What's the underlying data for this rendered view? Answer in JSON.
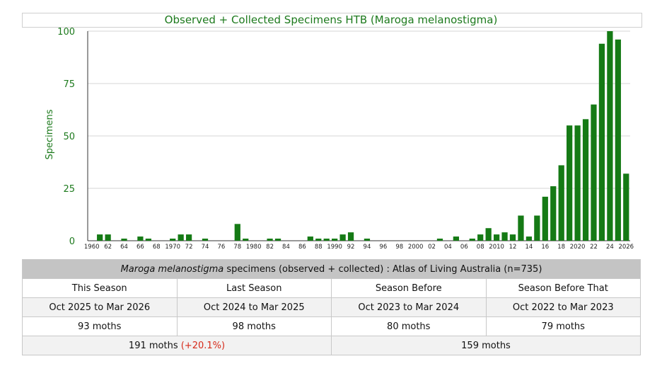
{
  "chart_data": {
    "type": "bar",
    "title": "Observed + Collected Specimens HTB (Maroga melanostigma)",
    "ylabel": "Specimens",
    "ylim": [
      0,
      100
    ],
    "yticks": [
      0,
      25,
      50,
      75,
      100
    ],
    "grid": true,
    "bar_color": "#157a15",
    "categories": [
      1960,
      1961,
      1962,
      1963,
      1964,
      1965,
      1966,
      1967,
      1968,
      1969,
      1970,
      1971,
      1972,
      1973,
      1974,
      1975,
      1976,
      1977,
      1978,
      1979,
      1980,
      1981,
      1982,
      1983,
      1984,
      1985,
      1986,
      1987,
      1988,
      1989,
      1990,
      1991,
      1992,
      1993,
      1994,
      1995,
      1996,
      1997,
      1998,
      1999,
      2000,
      2001,
      2002,
      2003,
      2004,
      2005,
      2006,
      2007,
      2008,
      2009,
      2010,
      2011,
      2012,
      2013,
      2014,
      2015,
      2016,
      2017,
      2018,
      2019,
      2020,
      2021,
      2022,
      2023,
      2024,
      2025,
      2026
    ],
    "values": [
      0,
      3,
      3,
      0,
      1,
      0,
      2,
      1,
      0,
      0,
      1,
      3,
      3,
      0,
      1,
      0,
      0,
      0,
      8,
      1,
      0,
      0,
      1,
      1,
      0,
      0,
      0,
      2,
      1,
      1,
      1,
      3,
      4,
      0,
      1,
      0,
      0,
      0,
      0,
      0,
      0,
      0,
      0,
      1,
      0,
      2,
      0,
      1,
      3,
      6,
      3,
      4,
      3,
      12,
      2,
      12,
      21,
      26,
      36,
      55,
      55,
      58,
      65,
      94,
      100,
      96,
      32
    ],
    "xtick_labels": [
      "1960",
      "62",
      "64",
      "66",
      "68",
      "1970",
      "72",
      "74",
      "76",
      "78",
      "1980",
      "82",
      "84",
      "86",
      "88",
      "1990",
      "92",
      "94",
      "96",
      "98",
      "2000",
      "02",
      "04",
      "06",
      "08",
      "2010",
      "12",
      "14",
      "16",
      "18",
      "2020",
      "22",
      "24",
      "2026"
    ]
  },
  "summary": {
    "header_species": "Maroga melanostigma",
    "header_rest": " specimens (observed + collected) : Atlas of Living Australia (n=735)",
    "columns": [
      {
        "label": "This Season",
        "range": "Oct 2025 to Mar 2026",
        "count": "93 moths"
      },
      {
        "label": "Last Season",
        "range": "Oct 2024 to Mar 2025",
        "count": "98 moths"
      },
      {
        "label": "Season Before",
        "range": "Oct 2023 to Mar 2024",
        "count": "80 moths"
      },
      {
        "label": "Season Before That",
        "range": "Oct 2022 to Mar 2023",
        "count": "79 moths"
      }
    ],
    "totals": {
      "recent": "191 moths",
      "recent_change": "(+20.1%)",
      "prior": "159 moths"
    },
    "colors": {
      "change": "#d62a1a",
      "header_bg": "#c4c4c4"
    }
  }
}
